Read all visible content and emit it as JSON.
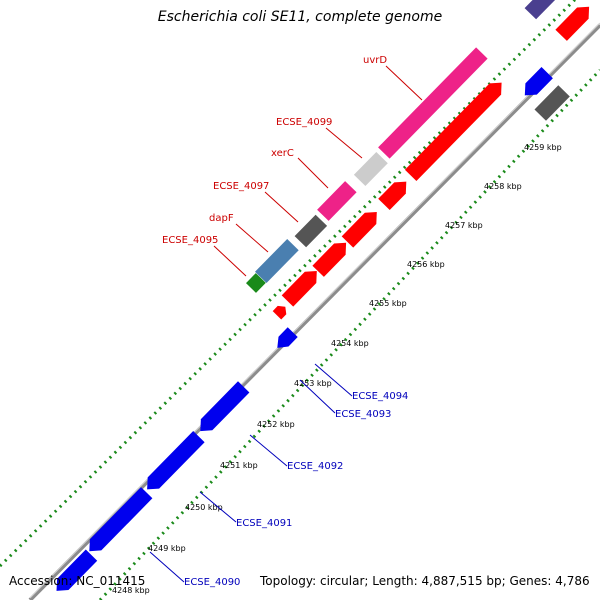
{
  "title": "Escherichia coli SE11, complete genome",
  "footer": {
    "accession": "Accession: NC_011415",
    "topology": "Topology: circular; Length: 4,887,515 bp; Genes: 4,786"
  },
  "colors": {
    "forward_cds": "#ff0000",
    "reverse_cds": "#0000ee",
    "forward_label": "#cc0000",
    "reverse_label": "#0000bb",
    "backbone": "#9a9a9a",
    "ticks": "#1a8a1a"
  },
  "position_ticks": [
    {
      "label": "4248 kbp"
    },
    {
      "label": "4249 kbp"
    },
    {
      "label": "4250 kbp"
    },
    {
      "label": "4251 kbp"
    },
    {
      "label": "4252 kbp"
    },
    {
      "label": "4253 kbp"
    },
    {
      "label": "4254 kbp"
    },
    {
      "label": "4255 kbp"
    },
    {
      "label": "4256 kbp"
    },
    {
      "label": "4257 kbp"
    },
    {
      "label": "4258 kbp"
    },
    {
      "label": "4259 kbp"
    }
  ],
  "forward_gene_labels": [
    {
      "name": "uvrD"
    },
    {
      "name": "ECSE_4099"
    },
    {
      "name": "xerC"
    },
    {
      "name": "ECSE_4097"
    },
    {
      "name": "dapF"
    },
    {
      "name": "ECSE_4095"
    }
  ],
  "reverse_gene_labels": [
    {
      "name": "ECSE_4094"
    },
    {
      "name": "ECSE_4093"
    },
    {
      "name": "ECSE_4092"
    },
    {
      "name": "ECSE_4091"
    },
    {
      "name": "ECSE_4090"
    }
  ]
}
